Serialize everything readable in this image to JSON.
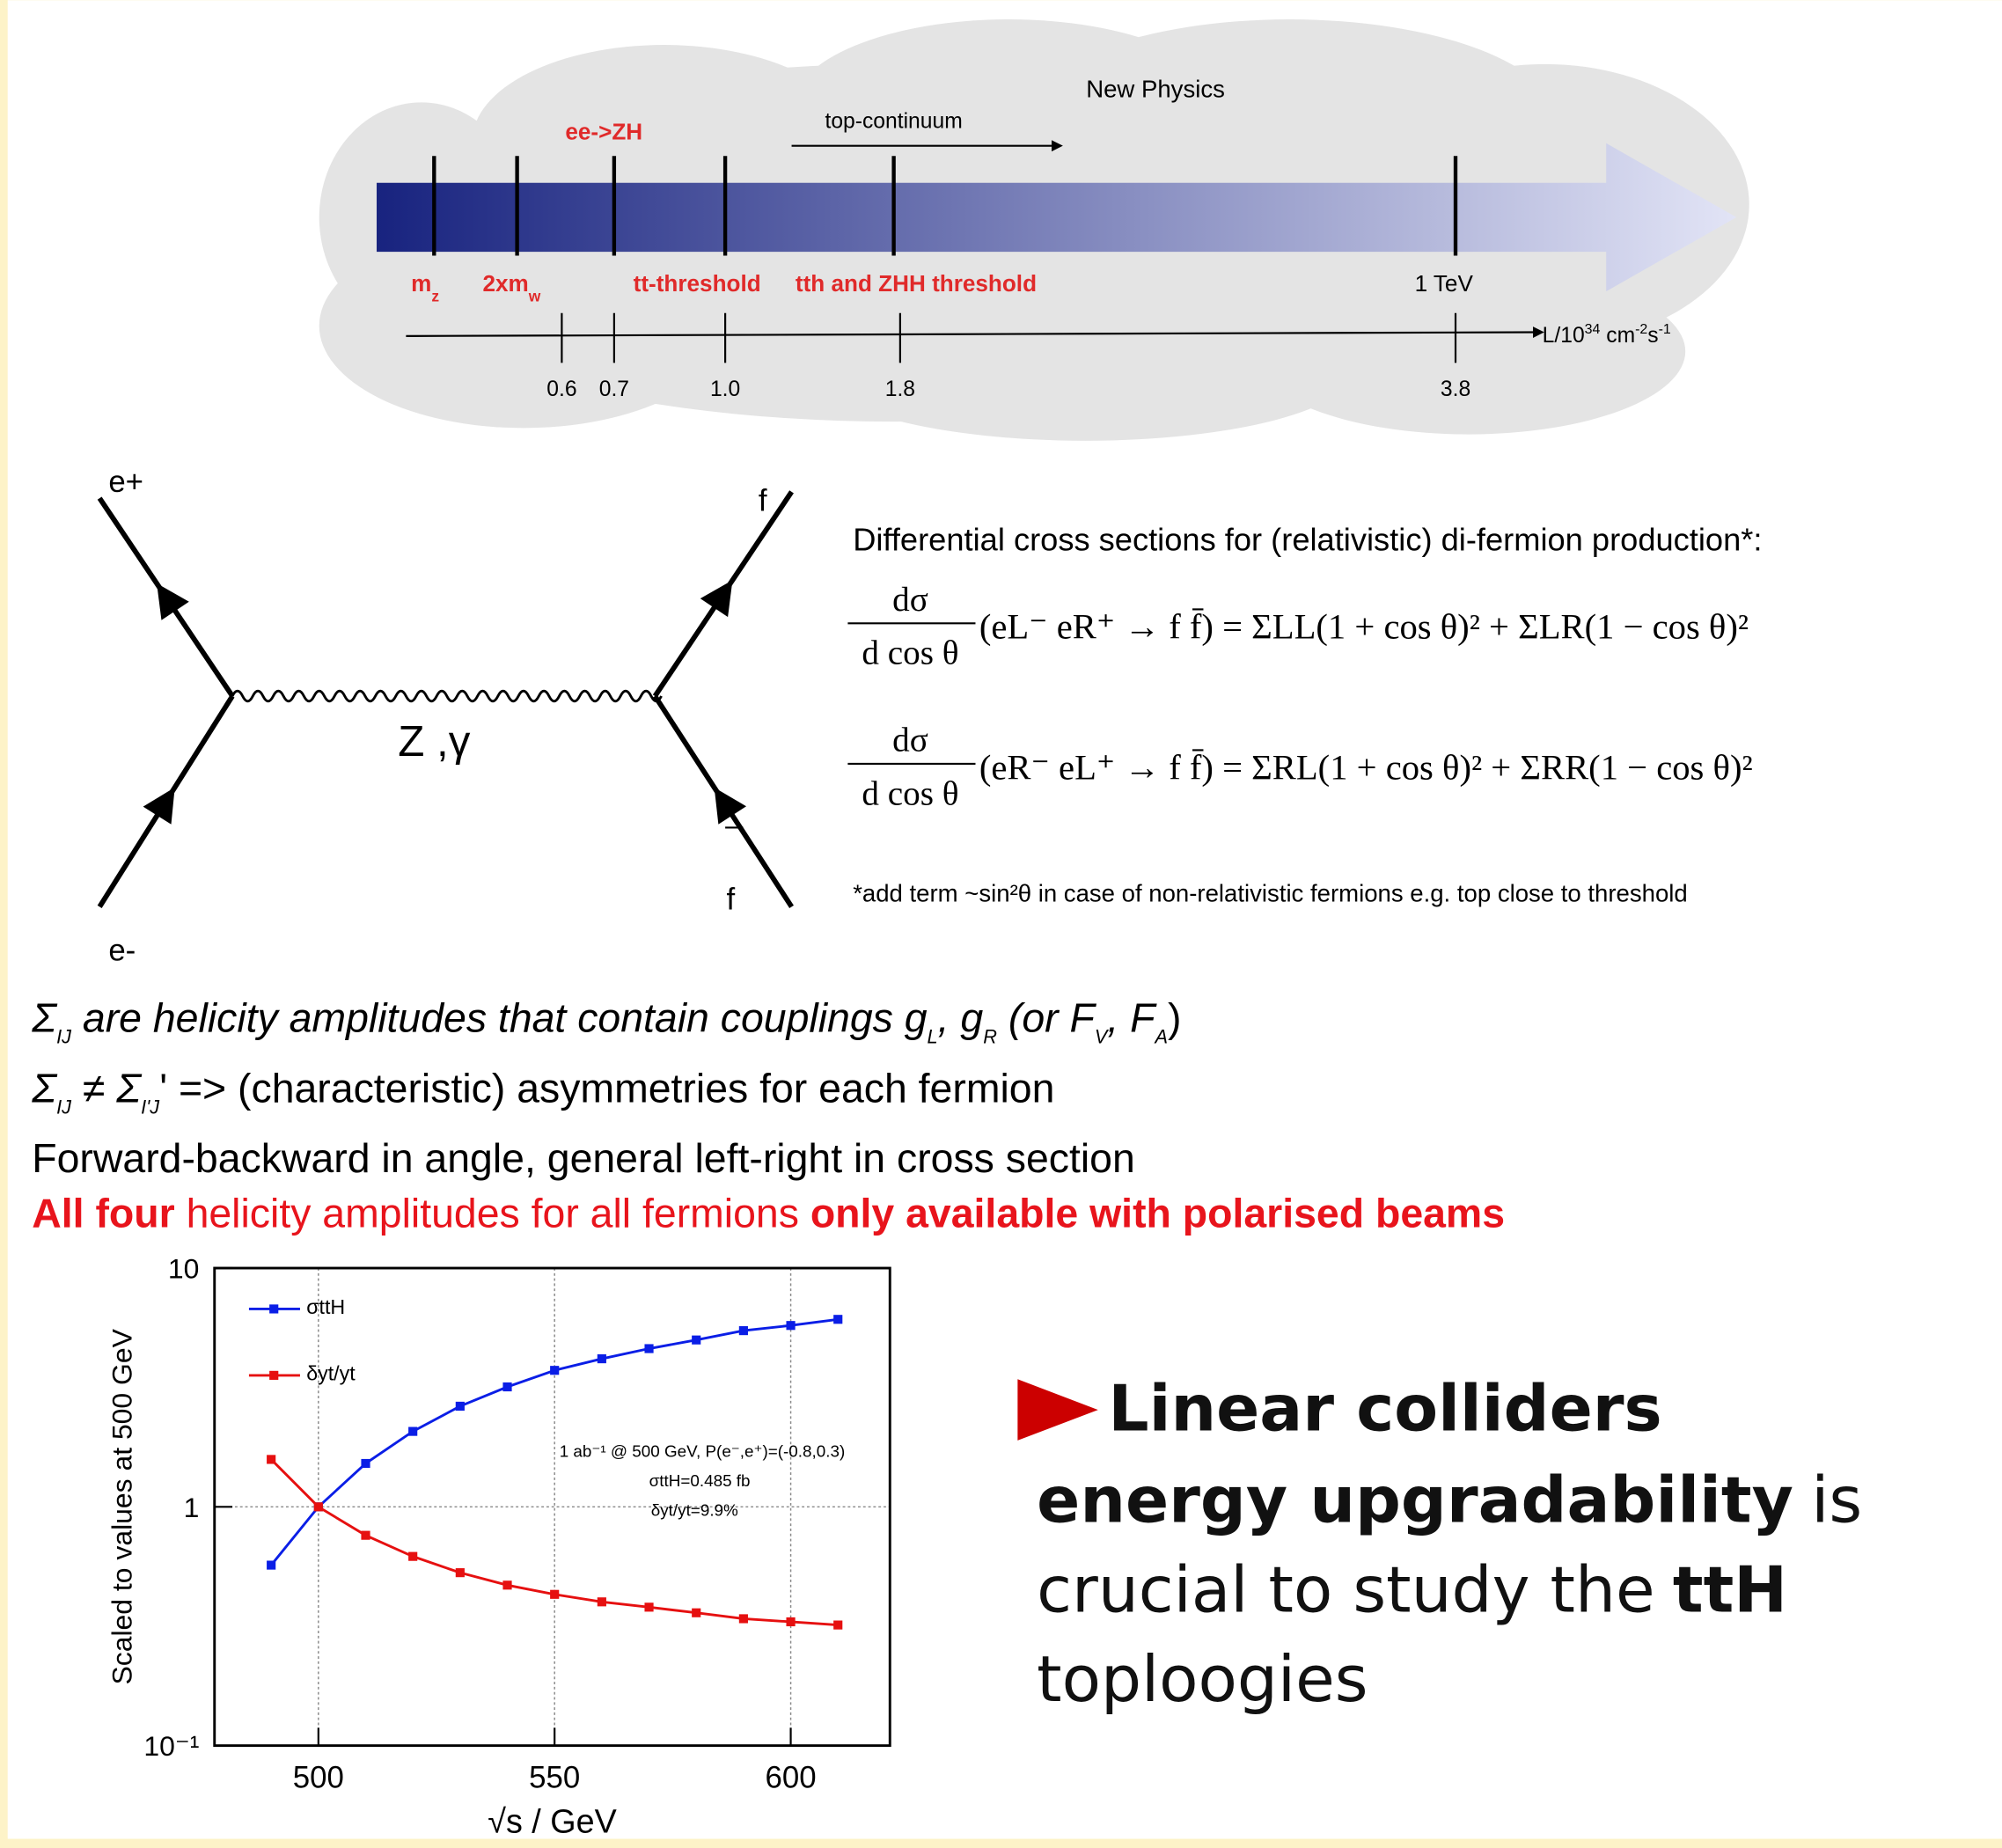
{
  "timeline": {
    "new_physics": "New Physics",
    "ee_zh": "ee->ZH",
    "top_continuum": "top-continuum",
    "thresholds": [
      {
        "text": "m",
        "sub": "z"
      },
      {
        "text": "2xm",
        "sub": "w"
      },
      {
        "text": "tt-threshold"
      },
      {
        "text": "tth and ZHH threshold"
      },
      {
        "text": "1 TeV"
      }
    ],
    "axis_label": [
      "L/10",
      "34",
      " cm",
      "-2",
      "s",
      "-1"
    ],
    "luminosity_ticks": [
      "0.6",
      "0.7",
      "1.0",
      "1.8",
      "3.8"
    ]
  },
  "feynman": {
    "e_plus": "e+",
    "e_minus": "e-",
    "f": "f",
    "f_bar": "f",
    "boson": "Z ,γ"
  },
  "formulas": {
    "header": "Differential cross sections for (relativistic) di-fermion production*:",
    "items": [
      {
        "numerator": "dσ",
        "denominator": "d cos θ",
        "rhs": "(eL⁻ eR⁺ → f f̄) = ΣLL(1 + cos θ)² + ΣLR(1 − cos θ)²"
      },
      {
        "numerator": "dσ",
        "denominator": "d cos θ",
        "rhs": "(eR⁻ eL⁺ → f f̄) = ΣRL(1 + cos θ)² + ΣRR(1 − cos θ)²"
      }
    ],
    "footnote": "*add term ~sin²θ in case of non-relativistic fermions e.g. top close to threshold"
  },
  "bullets": [
    [
      "Σ",
      "IJ",
      " are helicity amplitudes that contain couplings g",
      "L",
      ", g",
      "R",
      " (or F",
      "V",
      ", F",
      "A",
      ")"
    ],
    [
      "Σ",
      "IJ",
      " ≠ Σ",
      "I'J",
      "' => (characteristic) asymmetries for each fermion"
    ],
    [
      "Forward-backward in angle, general left-right in cross section"
    ],
    [
      "All four",
      " helicity amplitudes for all fermions ",
      "only available with polarised beams"
    ]
  ],
  "chart_data": {
    "type": "line",
    "x_label": "√s / GeV",
    "y_label": "Scaled to values at 500 GeV",
    "x": [
      490,
      500,
      510,
      520,
      530,
      540,
      550,
      560,
      570,
      580,
      590,
      600,
      610
    ],
    "series": [
      {
        "name": "σttH",
        "color": "#0a1ee6",
        "values": [
          0.57,
          1.0,
          1.52,
          2.07,
          2.64,
          3.18,
          3.73,
          4.17,
          4.6,
          5.0,
          5.47,
          5.75,
          6.1
        ]
      },
      {
        "name": "δyt/yt",
        "color": "#e61010",
        "values": [
          1.58,
          1.0,
          0.76,
          0.62,
          0.53,
          0.47,
          0.43,
          0.4,
          0.38,
          0.36,
          0.34,
          0.33,
          0.32
        ]
      }
    ],
    "xlim": [
      478,
      621
    ],
    "xticks": [
      500,
      550,
      600
    ],
    "ylim": [
      0.1,
      10
    ],
    "yticks": [
      {
        "value": 0.1,
        "label": "10⁻¹"
      },
      1,
      10
    ],
    "log_y": true,
    "grid": true,
    "annotations": [
      "1 ab⁻¹ @ 500 GeV, P(e⁻,e⁺)=(-0.8,0.3)",
      "σttH=0.485 fb",
      "δyt/yt=9.9%"
    ]
  },
  "callout": [
    "Linear colliders",
    "energy upgradability",
    "is",
    "crucial to study the",
    "ttH",
    "toploogies"
  ]
}
